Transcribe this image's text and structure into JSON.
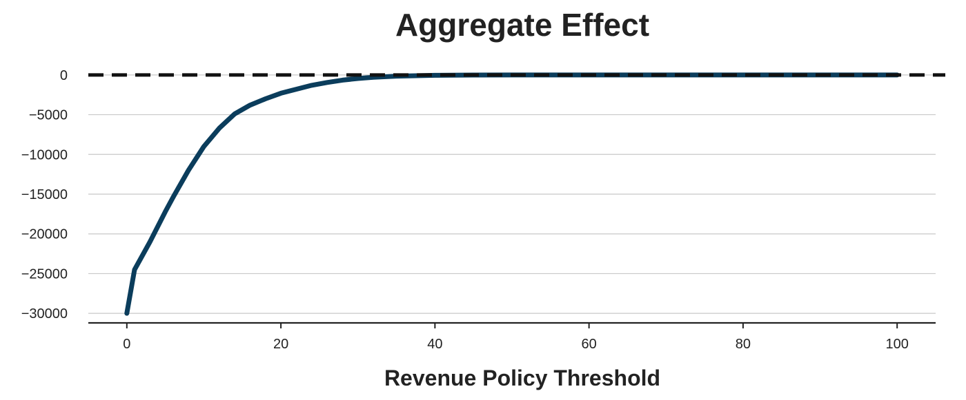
{
  "chart_data": {
    "type": "line",
    "title": "Aggregate Effect",
    "xlabel": "Revenue Policy Threshold",
    "ylabel": "",
    "xlim": [
      -5,
      105
    ],
    "ylim": [
      -31200,
      1200
    ],
    "xticks": [
      0,
      20,
      40,
      60,
      80,
      100
    ],
    "yticks": [
      0,
      -5000,
      -10000,
      -15000,
      -20000,
      -25000,
      -30000
    ],
    "x_tick_labels": [
      "0",
      "20",
      "40",
      "60",
      "80",
      "100"
    ],
    "y_tick_labels": [
      "0",
      "−5000",
      "−10000",
      "−15000",
      "−20000",
      "−25000",
      "−30000"
    ],
    "grid": "horizontal",
    "reference_line": {
      "y": 0,
      "style": "dashed",
      "color": "#111111"
    },
    "series": [
      {
        "color": "#0b3d5c",
        "x": [
          0,
          1,
          3,
          5,
          6,
          8,
          10,
          12,
          14,
          16,
          18,
          20,
          22,
          24,
          26,
          28,
          30,
          32,
          35,
          40,
          45,
          50,
          55,
          60,
          65,
          70,
          75,
          80,
          85,
          90,
          95,
          100
        ],
        "y": [
          -30000,
          -24500,
          -21000,
          -17200,
          -15400,
          -12000,
          -9000,
          -6700,
          -4900,
          -3800,
          -3000,
          -2300,
          -1800,
          -1300,
          -950,
          -650,
          -450,
          -300,
          -150,
          -50,
          -15,
          -5,
          0,
          0,
          0,
          0,
          0,
          0,
          0,
          0,
          0,
          0
        ]
      }
    ]
  }
}
